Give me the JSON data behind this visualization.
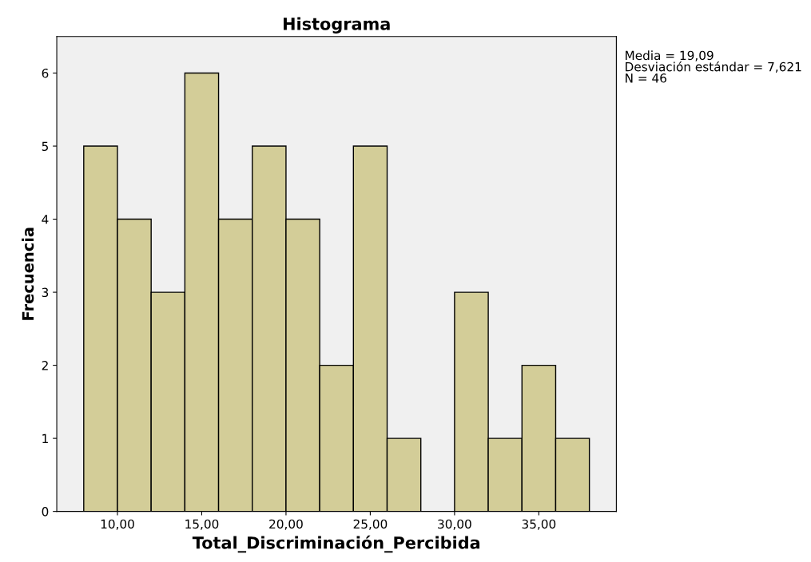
{
  "chart_data": {
    "type": "histogram",
    "title": "Histograma",
    "xlabel": "Total_Discriminación_Percibida",
    "ylabel": "Frecuencia",
    "bins": [
      8,
      10,
      12,
      14,
      16,
      18,
      20,
      22,
      24,
      26,
      28,
      30,
      32,
      34,
      36,
      38
    ],
    "values": [
      5,
      4,
      3,
      6,
      4,
      5,
      4,
      2,
      5,
      1,
      0,
      3,
      1,
      2,
      1
    ],
    "color": "#d3cd98",
    "xlim": [
      6.4,
      39.6
    ],
    "xticks": [
      {
        "value": 10,
        "label": "10,00"
      },
      {
        "value": 15,
        "label": "15,00"
      },
      {
        "value": 20,
        "label": "20,00"
      },
      {
        "value": 25,
        "label": "25,00"
      },
      {
        "value": 30,
        "label": "30,00"
      },
      {
        "value": 35,
        "label": "35,00"
      }
    ],
    "ylim": [
      0,
      6.5
    ],
    "yticks": [
      0,
      1,
      2,
      3,
      4,
      5,
      6
    ],
    "grid": false,
    "annotations": [
      "Media = 19,09\nDesviación estándar = 7,621\nN = 46"
    ]
  }
}
